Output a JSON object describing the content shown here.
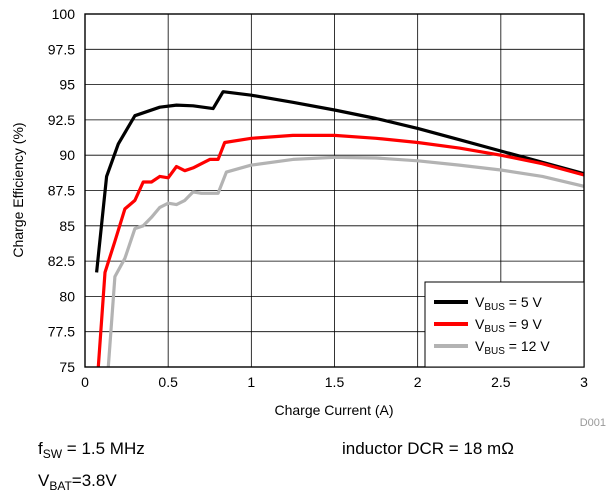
{
  "chart_data": {
    "type": "line",
    "xlabel": "Charge Current (A)",
    "ylabel": "Charge Efficiency (%)",
    "xlim": [
      0,
      3
    ],
    "ylim": [
      75,
      100
    ],
    "x_ticks": [
      0,
      0.5,
      1,
      1.5,
      2,
      2.5,
      3
    ],
    "x_tick_labels": [
      "0",
      "0.5",
      "1",
      "1.5",
      "2",
      "2.5",
      "3"
    ],
    "y_ticks": [
      75,
      77.5,
      80,
      82.5,
      85,
      87.5,
      90,
      92.5,
      95,
      97.5,
      100
    ],
    "y_tick_labels": [
      "75",
      "77.5",
      "80",
      "82.5",
      "85",
      "87.5",
      "90",
      "92.5",
      "95",
      "97.5",
      "100"
    ],
    "grid": true,
    "legend_position": "bottom-right",
    "figure_id": "D001",
    "series": [
      {
        "name": "VBUS = 5 V",
        "name_parts": {
          "main": "V",
          "sub": "BUS",
          "rest": " = 5 V"
        },
        "color": "#000000",
        "x": [
          0.07,
          0.13,
          0.2,
          0.3,
          0.45,
          0.55,
          0.65,
          0.77,
          0.83,
          1.0,
          1.25,
          1.5,
          1.75,
          2.0,
          2.25,
          2.5,
          2.75,
          3.0
        ],
        "y": [
          81.7,
          88.5,
          90.8,
          92.8,
          93.4,
          93.55,
          93.5,
          93.3,
          94.5,
          94.25,
          93.75,
          93.2,
          92.6,
          91.9,
          91.1,
          90.3,
          89.5,
          88.7
        ]
      },
      {
        "name": "VBUS = 9 V",
        "name_parts": {
          "main": "V",
          "sub": "BUS",
          "rest": " = 9 V"
        },
        "color": "#ff0000",
        "x": [
          0.08,
          0.12,
          0.18,
          0.24,
          0.3,
          0.35,
          0.4,
          0.45,
          0.5,
          0.55,
          0.6,
          0.65,
          0.7,
          0.75,
          0.8,
          0.84,
          1.0,
          1.25,
          1.5,
          1.75,
          2.0,
          2.25,
          2.5,
          2.75,
          3.0
        ],
        "y": [
          75.0,
          81.7,
          83.9,
          86.2,
          86.8,
          88.1,
          88.1,
          88.5,
          88.4,
          89.2,
          88.9,
          89.1,
          89.4,
          89.7,
          89.7,
          90.9,
          91.2,
          91.4,
          91.4,
          91.2,
          90.9,
          90.5,
          90.0,
          89.4,
          88.6
        ]
      },
      {
        "name": "VBUS = 12 V",
        "name_parts": {
          "main": "V",
          "sub": "BUS",
          "rest": " = 12 V"
        },
        "color": "#b3b3b3",
        "x": [
          0.14,
          0.18,
          0.24,
          0.3,
          0.35,
          0.4,
          0.45,
          0.5,
          0.55,
          0.6,
          0.65,
          0.7,
          0.75,
          0.8,
          0.85,
          1.0,
          1.25,
          1.5,
          1.75,
          2.0,
          2.25,
          2.5,
          2.75,
          3.0
        ],
        "y": [
          75.0,
          81.4,
          82.7,
          84.8,
          85.0,
          85.6,
          86.3,
          86.6,
          86.5,
          86.8,
          87.4,
          87.3,
          87.3,
          87.3,
          88.8,
          89.3,
          89.7,
          89.85,
          89.8,
          89.6,
          89.3,
          88.95,
          88.5,
          87.8
        ]
      }
    ]
  },
  "notes": {
    "fsw": {
      "main": "f",
      "sub": "SW",
      "rest": " = 1.5 MHz"
    },
    "vbat": {
      "main": "V",
      "sub": "BAT",
      "rest": "=3.8V"
    },
    "dcr": "inductor DCR = 18 mΩ"
  }
}
